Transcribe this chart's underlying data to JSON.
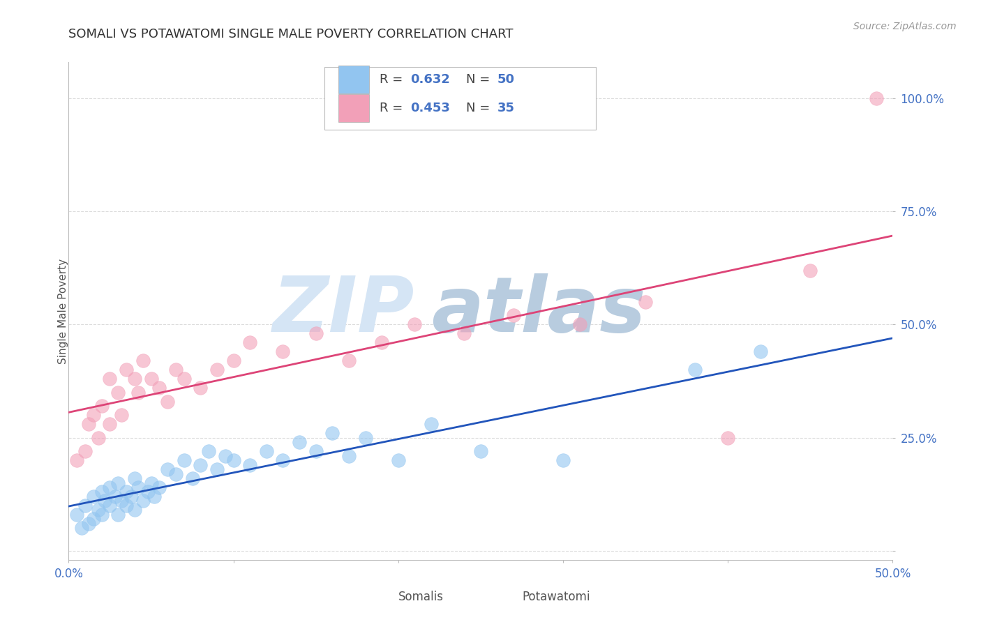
{
  "title": "SOMALI VS POTAWATOMI SINGLE MALE POVERTY CORRELATION CHART",
  "source": "Source: ZipAtlas.com",
  "ylabel": "Single Male Poverty",
  "xlim": [
    0.0,
    0.5
  ],
  "ylim": [
    -0.02,
    1.08
  ],
  "somali_color": "#92C5F0",
  "potawatomi_color": "#F2A0B8",
  "somali_line_color": "#2255BB",
  "potawatomi_line_color": "#DD4477",
  "watermark_zip": "ZIP",
  "watermark_atlas": "atlas",
  "watermark_color_zip": "#D0DEEE",
  "watermark_color_atlas": "#B8CCE4",
  "background_color": "#FFFFFF",
  "grid_color": "#CCCCCC",
  "somali_x": [
    0.005,
    0.008,
    0.01,
    0.012,
    0.015,
    0.015,
    0.018,
    0.02,
    0.02,
    0.022,
    0.025,
    0.025,
    0.028,
    0.03,
    0.03,
    0.032,
    0.035,
    0.035,
    0.038,
    0.04,
    0.04,
    0.042,
    0.045,
    0.048,
    0.05,
    0.052,
    0.055,
    0.06,
    0.065,
    0.07,
    0.075,
    0.08,
    0.085,
    0.09,
    0.095,
    0.1,
    0.11,
    0.12,
    0.13,
    0.14,
    0.15,
    0.16,
    0.17,
    0.18,
    0.2,
    0.22,
    0.25,
    0.3,
    0.38,
    0.42
  ],
  "somali_y": [
    0.08,
    0.05,
    0.1,
    0.06,
    0.12,
    0.07,
    0.09,
    0.13,
    0.08,
    0.11,
    0.1,
    0.14,
    0.12,
    0.08,
    0.15,
    0.11,
    0.13,
    0.1,
    0.12,
    0.09,
    0.16,
    0.14,
    0.11,
    0.13,
    0.15,
    0.12,
    0.14,
    0.18,
    0.17,
    0.2,
    0.16,
    0.19,
    0.22,
    0.18,
    0.21,
    0.2,
    0.19,
    0.22,
    0.2,
    0.24,
    0.22,
    0.26,
    0.21,
    0.25,
    0.2,
    0.28,
    0.22,
    0.2,
    0.4,
    0.44
  ],
  "potawatomi_x": [
    0.005,
    0.01,
    0.012,
    0.015,
    0.018,
    0.02,
    0.025,
    0.025,
    0.03,
    0.032,
    0.035,
    0.04,
    0.042,
    0.045,
    0.05,
    0.055,
    0.06,
    0.065,
    0.07,
    0.08,
    0.09,
    0.1,
    0.11,
    0.13,
    0.15,
    0.17,
    0.19,
    0.21,
    0.24,
    0.27,
    0.31,
    0.35,
    0.4,
    0.45,
    0.49
  ],
  "potawatomi_y": [
    0.2,
    0.22,
    0.28,
    0.3,
    0.25,
    0.32,
    0.28,
    0.38,
    0.35,
    0.3,
    0.4,
    0.38,
    0.35,
    0.42,
    0.38,
    0.36,
    0.33,
    0.4,
    0.38,
    0.36,
    0.4,
    0.42,
    0.46,
    0.44,
    0.48,
    0.42,
    0.46,
    0.5,
    0.48,
    0.52,
    0.5,
    0.55,
    0.25,
    0.62,
    1.0
  ]
}
